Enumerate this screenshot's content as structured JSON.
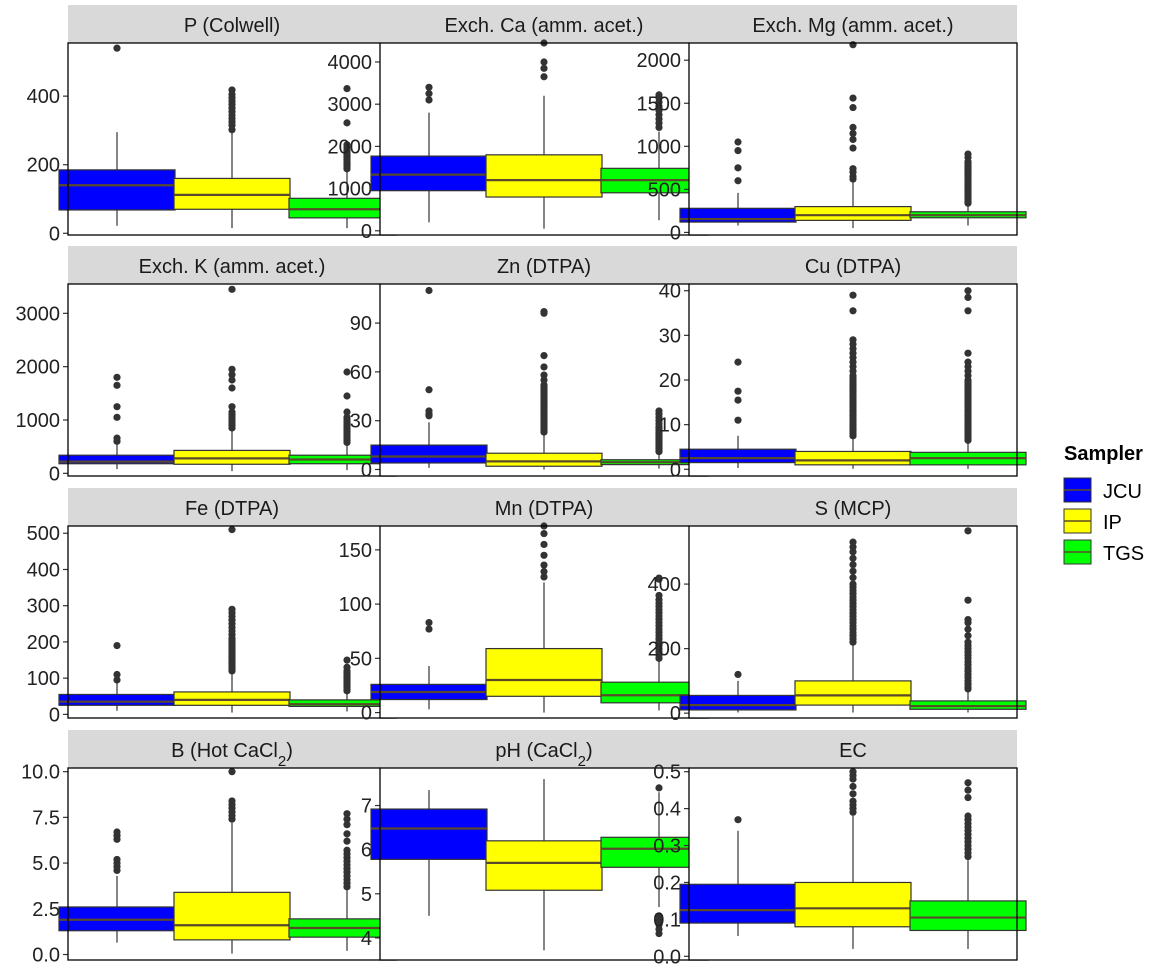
{
  "chart_data": {
    "type": "boxplot",
    "groups": [
      "JCU",
      "IP",
      "TGS"
    ],
    "legend": {
      "title": "Sampler",
      "placement": "right",
      "entries": [
        {
          "name": "JCU",
          "color": "#0000FF"
        },
        {
          "name": "IP",
          "color": "#FFFF00"
        },
        {
          "name": "TGS",
          "color": "#00FF00"
        }
      ]
    },
    "panels": [
      {
        "title": "P (Colwell)",
        "ylim": [
          -5,
          555
        ],
        "ticks": [
          0,
          200,
          400
        ],
        "boxes": [
          {
            "q1": 68,
            "median": 140,
            "q3": 185,
            "lower": 22,
            "upper": 295,
            "outliers": [
              540
            ]
          },
          {
            "q1": 70,
            "median": 112,
            "q3": 160,
            "lower": 15,
            "upper": 295,
            "outliers": [
              302,
              315,
              325,
              335,
              345,
              355,
              365,
              375,
              385,
              395,
              405,
              418
            ]
          },
          {
            "q1": 45,
            "median": 70,
            "q3": 102,
            "lower": 15,
            "upper": 185,
            "outliers": [
              188,
              195,
              200,
              205,
              210,
              215,
              220,
              225,
              230,
              236,
              242,
              250,
              258,
              322,
              422
            ]
          }
        ]
      },
      {
        "title": "Exch. Ca (amm. acet.)",
        "ylim": [
          -100,
          4450
        ],
        "ticks": [
          0,
          1000,
          2000,
          3000,
          4000
        ],
        "boxes": [
          {
            "q1": 950,
            "median": 1330,
            "q3": 1770,
            "lower": 200,
            "upper": 2800,
            "outliers": [
              3100,
              3250,
              3400
            ]
          },
          {
            "q1": 800,
            "median": 1200,
            "q3": 1800,
            "lower": 50,
            "upper": 3200,
            "outliers": [
              3650,
              3850,
              4000,
              4450
            ]
          },
          {
            "q1": 900,
            "median": 1200,
            "q3": 1480,
            "lower": 250,
            "upper": 2350,
            "outliers": [
              2450,
              2550,
              2650,
              2750,
              2850,
              2950,
              3050,
              3150,
              3220
            ]
          }
        ]
      },
      {
        "title": "Exch. Mg (amm. acet.)",
        "ylim": [
          -30,
          2200
        ],
        "ticks": [
          0,
          500,
          1000,
          1500,
          2000
        ],
        "boxes": [
          {
            "q1": 120,
            "median": 155,
            "q3": 280,
            "lower": 80,
            "upper": 460,
            "outliers": [
              600,
              750,
              950,
              1050
            ]
          },
          {
            "q1": 140,
            "median": 200,
            "q3": 300,
            "lower": 50,
            "upper": 580,
            "outliers": [
              620,
              650,
              700,
              740,
              980,
              1080,
              1150,
              1220,
              1450,
              1560,
              2180
            ]
          },
          {
            "q1": 170,
            "median": 200,
            "q3": 240,
            "lower": 80,
            "upper": 330,
            "outliers": [
              340,
              360,
              380,
              400,
              420,
              440,
              460,
              480,
              500,
              520,
              540,
              560,
              580,
              600,
              620,
              640,
              660,
              680,
              700,
              720,
              740,
              760,
              780,
              800,
              820,
              870,
              910
            ]
          }
        ]
      },
      {
        "title": "Exch. K (amm. acet.)",
        "ylim": [
          -50,
          3550
        ],
        "ticks": [
          0,
          1000,
          2000,
          3000
        ],
        "boxes": [
          {
            "q1": 180,
            "median": 220,
            "q3": 340,
            "lower": 80,
            "upper": 560,
            "outliers": [
              600,
              660,
              1050,
              1250,
              1650,
              1800
            ]
          },
          {
            "q1": 170,
            "median": 280,
            "q3": 430,
            "lower": 40,
            "upper": 800,
            "outliers": [
              850,
              900,
              950,
              1000,
              1050,
              1100,
              1150,
              1250,
              1600,
              1750,
              1850,
              1950,
              3450
            ]
          },
          {
            "q1": 180,
            "median": 260,
            "q3": 340,
            "lower": 60,
            "upper": 560,
            "outliers": [
              580,
              620,
              660,
              700,
              740,
              780,
              820,
              860,
              900,
              950,
              1000,
              1050,
              1150,
              1450,
              1900
            ]
          }
        ]
      },
      {
        "title": "Zn (DTPA)",
        "ylim": [
          -4,
          114
        ],
        "ticks": [
          0,
          30,
          60,
          90
        ],
        "boxes": [
          {
            "q1": 4,
            "median": 8,
            "q3": 15,
            "lower": 1,
            "upper": 29,
            "outliers": [
              33,
              34,
              36,
              49,
              110
            ]
          },
          {
            "q1": 2,
            "median": 5,
            "q3": 10,
            "lower": 0,
            "upper": 22,
            "outliers": [
              23,
              24,
              25,
              26,
              27,
              28,
              29,
              30,
              31,
              32,
              33,
              34,
              35,
              36,
              37,
              38,
              39,
              40,
              41,
              42,
              43,
              44,
              45,
              46,
              47,
              48,
              49,
              50,
              51,
              52,
              55,
              58,
              63,
              70,
              96,
              97
            ]
          },
          {
            "q1": 3,
            "median": 4.5,
            "q3": 6,
            "lower": 0.5,
            "upper": 10,
            "outliers": [
              11,
              12,
              13,
              14,
              15,
              16,
              17,
              18,
              19,
              20,
              21,
              22,
              23,
              24,
              25,
              26,
              28,
              30,
              32,
              34,
              36
            ]
          }
        ]
      },
      {
        "title": "Cu (DTPA)",
        "ylim": [
          -1.5,
          41.5
        ],
        "ticks": [
          0,
          10,
          20,
          30,
          40
        ],
        "boxes": [
          {
            "q1": 1.5,
            "median": 2.5,
            "q3": 4.5,
            "lower": 0.3,
            "upper": 7.5,
            "outliers": [
              11,
              15.5,
              17.5,
              24
            ]
          },
          {
            "q1": 1,
            "median": 2,
            "q3": 4,
            "lower": 0.1,
            "upper": 7,
            "outliers": [
              7.5,
              8,
              8.5,
              9,
              9.5,
              10,
              10.5,
              11,
              11.5,
              12,
              12.5,
              13,
              13.5,
              14,
              14.5,
              15,
              15.5,
              16,
              16.5,
              17,
              17.5,
              18,
              18.5,
              19,
              19.5,
              20,
              20.5,
              21,
              22,
              23,
              24,
              25,
              26,
              27,
              28,
              29,
              35.5,
              39
            ]
          },
          {
            "q1": 1,
            "median": 2.5,
            "q3": 3.8,
            "lower": 0.1,
            "upper": 6,
            "outliers": [
              6.5,
              7,
              7.5,
              8,
              8.5,
              9,
              9.5,
              10,
              10.5,
              11,
              11.5,
              12,
              12.5,
              13,
              13.5,
              14,
              14.5,
              15,
              15.5,
              16,
              16.5,
              17,
              17.5,
              18,
              18.5,
              19,
              19.5,
              20,
              21,
              22,
              23,
              24,
              26,
              35.5,
              38.5,
              40
            ]
          }
        ]
      },
      {
        "title": "Fe (DTPA)",
        "ylim": [
          -10,
          520
        ],
        "ticks": [
          0,
          100,
          200,
          300,
          400,
          500
        ],
        "boxes": [
          {
            "q1": 25,
            "median": 35,
            "q3": 55,
            "lower": 10,
            "upper": 90,
            "outliers": [
              95,
              110,
              190
            ]
          },
          {
            "q1": 25,
            "median": 40,
            "q3": 62,
            "lower": 5,
            "upper": 115,
            "outliers": [
              120,
              125,
              130,
              135,
              140,
              145,
              150,
              155,
              160,
              165,
              170,
              175,
              180,
              185,
              190,
              195,
              200,
              205,
              210,
              220,
              230,
              240,
              250,
              260,
              270,
              280,
              290,
              510
            ]
          },
          {
            "q1": 22,
            "median": 28,
            "q3": 40,
            "lower": 8,
            "upper": 62,
            "outliers": [
              65,
              70,
              75,
              80,
              85,
              90,
              95,
              100,
              105,
              110,
              115,
              120,
              130,
              150
            ]
          }
        ]
      },
      {
        "title": "Mn (DTPA)",
        "ylim": [
          -5,
          172
        ],
        "ticks": [
          0,
          50,
          100,
          150
        ],
        "boxes": [
          {
            "q1": 12,
            "median": 19,
            "q3": 26,
            "lower": 3,
            "upper": 43,
            "outliers": [
              77,
              83
            ]
          },
          {
            "q1": 15,
            "median": 30,
            "q3": 59,
            "lower": 0,
            "upper": 120,
            "outliers": [
              125,
              130,
              136,
              145,
              155,
              165,
              172
            ]
          },
          {
            "q1": 9,
            "median": 16,
            "q3": 28,
            "lower": 2,
            "upper": 48,
            "outliers": [
              50,
              53,
              56,
              59,
              62,
              65,
              68,
              71,
              74,
              77,
              80,
              83,
              86,
              89,
              92,
              95,
              98,
              101,
              104,
              108,
              123,
              124
            ]
          }
        ]
      },
      {
        "title": "S (MCP)",
        "ylim": [
          -15,
          580
        ],
        "ticks": [
          0,
          200,
          400
        ],
        "boxes": [
          {
            "q1": 10,
            "median": 25,
            "q3": 55,
            "lower": 2,
            "upper": 100,
            "outliers": [
              120
            ]
          },
          {
            "q1": 25,
            "median": 55,
            "q3": 100,
            "lower": 2,
            "upper": 215,
            "outliers": [
              220,
              230,
              240,
              250,
              260,
              270,
              280,
              290,
              300,
              310,
              320,
              330,
              340,
              350,
              360,
              370,
              380,
              390,
              400,
              420,
              440,
              460,
              480,
              500,
              515,
              530
            ]
          },
          {
            "q1": 12,
            "median": 22,
            "q3": 38,
            "lower": 2,
            "upper": 70,
            "outliers": [
              75,
              80,
              90,
              100,
              110,
              120,
              130,
              140,
              150,
              160,
              170,
              180,
              190,
              200,
              210,
              220,
              240,
              260,
              280,
              290,
              350,
              565
            ]
          }
        ]
      },
      {
        "title": "B (Hot CaCl",
        "title_sub": "2",
        "title_end": ")",
        "ylim": [
          -0.3,
          10.2
        ],
        "ticks": [
          0,
          2.5,
          5,
          7.5,
          10
        ],
        "tick_labels": [
          "0.0",
          "2.5",
          "5.0",
          "7.5",
          "10.0"
        ],
        "boxes": [
          {
            "q1": 1.3,
            "median": 1.9,
            "q3": 2.6,
            "lower": 0.65,
            "upper": 4.3,
            "outliers": [
              4.6,
              4.8,
              5.0,
              5.2,
              6.3,
              6.5,
              6.7
            ]
          },
          {
            "q1": 0.8,
            "median": 1.6,
            "q3": 3.4,
            "lower": 0.05,
            "upper": 7.2,
            "outliers": [
              7.4,
              7.6,
              7.8,
              8.0,
              8.2,
              8.4,
              10.0
            ]
          },
          {
            "q1": 0.95,
            "median": 1.45,
            "q3": 1.95,
            "lower": 0.2,
            "upper": 3.5,
            "outliers": [
              3.7,
              3.9,
              4.1,
              4.3,
              4.5,
              4.7,
              4.9,
              5.1,
              5.3,
              5.5,
              5.7,
              6.2,
              6.6,
              7.1,
              7.4,
              7.7
            ]
          }
        ]
      },
      {
        "title": "pH (CaCl",
        "title_sub": "2",
        "title_end": ")",
        "ylim": [
          3.5,
          7.85
        ],
        "ticks": [
          4,
          5,
          6,
          7
        ],
        "boxes": [
          {
            "q1": 5.78,
            "median": 6.48,
            "q3": 6.92,
            "lower": 4.5,
            "upper": 7.35,
            "outliers": []
          },
          {
            "q1": 5.08,
            "median": 5.7,
            "q3": 6.2,
            "lower": 3.72,
            "upper": 7.6,
            "outliers": []
          },
          {
            "q1": 5.6,
            "median": 6.02,
            "q3": 6.28,
            "lower": 4.7,
            "upper": 7.3,
            "outliers": [
              4.1,
              4.2,
              4.3,
              4.4,
              4.5,
              7.4
            ]
          }
        ]
      },
      {
        "title": "EC",
        "ylim": [
          -0.01,
          0.51
        ],
        "ticks": [
          0,
          0.1,
          0.2,
          0.3,
          0.4,
          0.5
        ],
        "tick_labels": [
          "0.0",
          "0.1",
          "0.2",
          "0.3",
          "0.4",
          "0.5"
        ],
        "boxes": [
          {
            "q1": 0.09,
            "median": 0.125,
            "q3": 0.195,
            "lower": 0.055,
            "upper": 0.34,
            "outliers": [
              0.37
            ]
          },
          {
            "q1": 0.08,
            "median": 0.13,
            "q3": 0.2,
            "lower": 0.02,
            "upper": 0.38,
            "outliers": [
              0.39,
              0.4,
              0.41,
              0.42,
              0.44,
              0.46,
              0.48,
              0.49,
              0.5
            ]
          },
          {
            "q1": 0.07,
            "median": 0.105,
            "q3": 0.15,
            "lower": 0.02,
            "upper": 0.26,
            "outliers": [
              0.27,
              0.28,
              0.29,
              0.3,
              0.31,
              0.32,
              0.33,
              0.34,
              0.35,
              0.36,
              0.37,
              0.38,
              0.43,
              0.45,
              0.47
            ]
          }
        ]
      }
    ]
  }
}
